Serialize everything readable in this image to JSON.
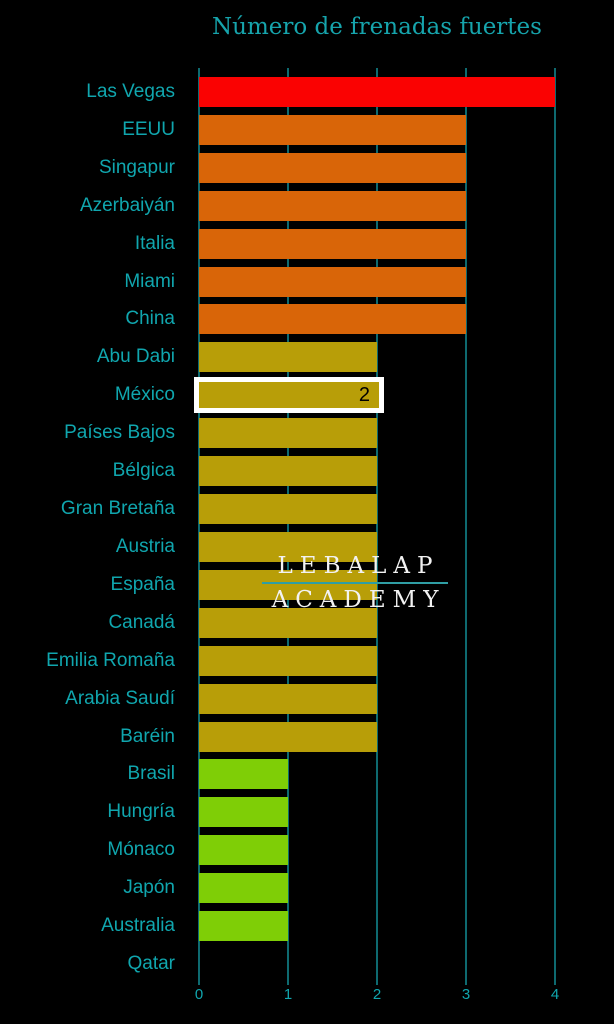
{
  "colors": {
    "background": "#000000",
    "title_text": "#16a4ac",
    "category_label_text": "#10a6ae",
    "tick_label_text": "#10a6ae",
    "gridline": "#0e6a70",
    "highlight_border": "#ffffff",
    "highlight_value_text": "#000000",
    "watermark_text": "#f2f2f2",
    "watermark_divider": "#2f9ea4",
    "value_colors": {
      "4": "#fa0202",
      "3": "#d96508",
      "2": "#b89e08",
      "1": "#7fce06"
    }
  },
  "watermark": {
    "line1": "LEBALAP",
    "line2": "ACADEMY"
  },
  "chart_data": {
    "type": "bar",
    "orientation": "horizontal",
    "title": "Número de frenadas fuertes",
    "xlabel": "",
    "ylabel": "",
    "xlim": [
      0,
      4
    ],
    "xticks": [
      0,
      1,
      2,
      3,
      4
    ],
    "grid": true,
    "legend": false,
    "categories": [
      "Las Vegas",
      "EEUU",
      "Singapur",
      "Azerbaiyán",
      "Italia",
      "Miami",
      "China",
      "Abu Dabi",
      "México",
      "Países Bajos",
      "Bélgica",
      "Gran Bretaña",
      "Austria",
      "España",
      "Canadá",
      "Emilia Romaña",
      "Arabia Saudí",
      "Baréin",
      "Brasil",
      "Hungría",
      "Mónaco",
      "Japón",
      "Australia",
      "Qatar"
    ],
    "values": [
      4,
      3,
      3,
      3,
      3,
      3,
      3,
      2,
      2,
      2,
      2,
      2,
      2,
      2,
      2,
      2,
      2,
      2,
      1,
      1,
      1,
      1,
      1,
      0
    ],
    "highlight": {
      "category": "México",
      "value_label": "2"
    }
  }
}
